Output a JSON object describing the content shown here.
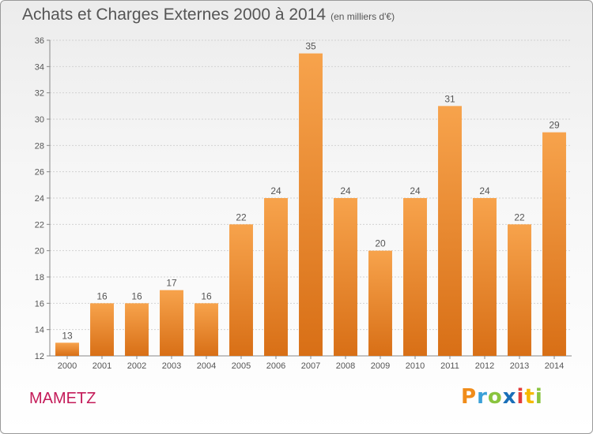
{
  "chart_data": {
    "type": "bar",
    "title": "Achats et Charges Externes 2000 à 2014",
    "subtitle": "(en milliers d'€)",
    "categories": [
      "2000",
      "2001",
      "2002",
      "2003",
      "2004",
      "2005",
      "2006",
      "2007",
      "2008",
      "2009",
      "2010",
      "2011",
      "2012",
      "2013",
      "2014"
    ],
    "values": [
      13,
      16,
      16,
      17,
      16,
      22,
      24,
      35,
      24,
      20,
      24,
      31,
      24,
      22,
      29
    ],
    "ylim": [
      12,
      36
    ],
    "yticks": [
      12,
      14,
      16,
      18,
      20,
      22,
      24,
      26,
      28,
      30,
      32,
      34,
      36
    ],
    "grid": true,
    "bar_color": "#ee8a2a"
  },
  "footer": {
    "city": "MAMETZ",
    "logo": "Proxiti"
  }
}
